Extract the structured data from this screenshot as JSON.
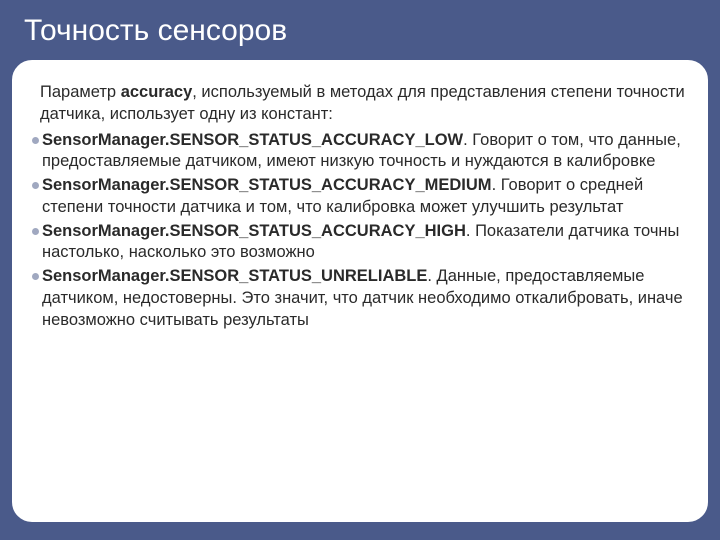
{
  "colors": {
    "slide_bg": "#4a5a8a",
    "card_bg": "#ffffff",
    "card_border": "#4a5a8a",
    "title_color": "#ffffff",
    "body_color": "#2a2a2a",
    "bullet_color": "#a0a8c0"
  },
  "typography": {
    "title_fontsize": 30,
    "body_fontsize": 16.5,
    "line_height": 1.32,
    "font_family": "Arial"
  },
  "layout": {
    "card_border_radius": 22,
    "card_margin": 10,
    "card_padding": 20
  },
  "title": "Точность сенсоров",
  "intro_prefix": "Параметр ",
  "intro_bold": "accuracy",
  "intro_suffix": ", используемый в методах для представления степени точности датчика, использует одну из констант:",
  "bullets": [
    {
      "const": "SensorManager.SENSOR_STATUS_ACCURACY_LOW",
      "desc": ". Говорит о том, что данные, предоставляемые датчиком, имеют низкую точность и нуждаются в калибровке"
    },
    {
      "const": "SensorManager.SENSOR_STATUS_ACCURACY_MEDIUM",
      "desc": ". Говорит о средней степени точности датчика и том, что калибровка может улучшить результат"
    },
    {
      "const": "SensorManager.SENSOR_STATUS_ACCURACY_HIGH",
      "desc": ". Показатели датчика точны настолько, насколько это возможно"
    },
    {
      "const": "SensorManager.SENSOR_STATUS_UNRELIABLE",
      "desc": ". Данные, предоставляемые датчиком, недостоверны. Это значит, что датчик необходимо откалибровать, иначе невозможно считывать результаты"
    }
  ]
}
